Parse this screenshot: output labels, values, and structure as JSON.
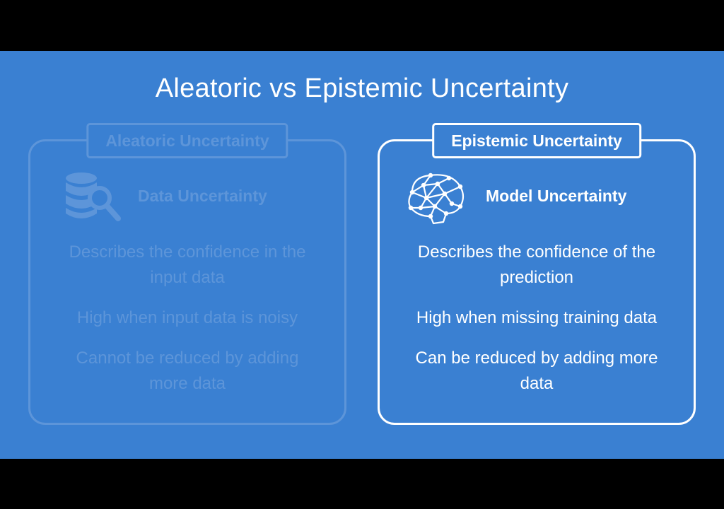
{
  "title": "Aleatoric vs Epistemic Uncertainty",
  "panels": {
    "aleatoric": {
      "label": "Aleatoric Uncertainty",
      "icon": "database-search-icon",
      "heading": "Data Uncertainty",
      "line1": "Describes the confidence in the input data",
      "line2": "High when input data is noisy",
      "line3_emph": "Cannot",
      "line3_rest": " be reduced by adding more data",
      "state": "dimmed"
    },
    "epistemic": {
      "label": "Epistemic Uncertainty",
      "icon": "brain-network-icon",
      "heading": "Model Uncertainty",
      "line1": "Describes the confidence of the prediction",
      "line2": "High when missing training data",
      "line3_emph": "Can",
      "line3_rest": " be reduced by adding more data",
      "state": "active"
    }
  },
  "colors": {
    "background": "#3a80d2",
    "active": "#ffffff",
    "dimmed": "#5d95d9",
    "letterbox": "#000000"
  }
}
